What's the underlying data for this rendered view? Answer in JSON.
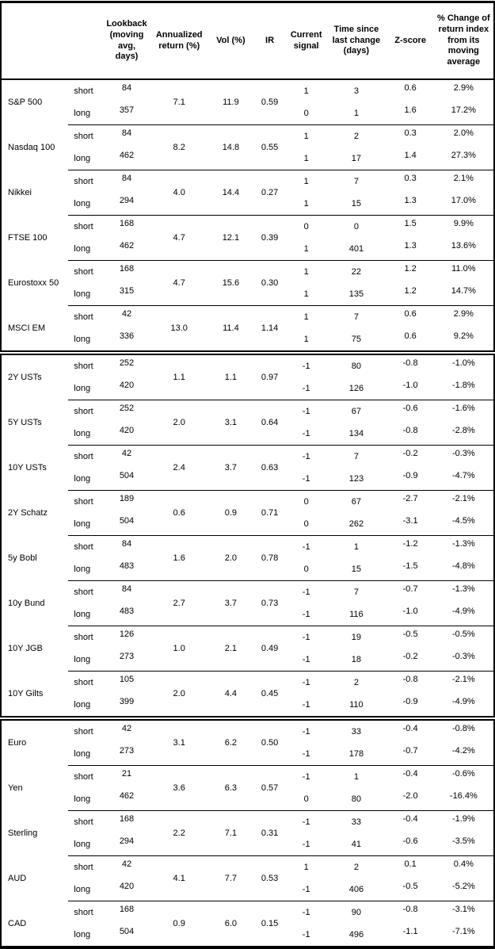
{
  "table": {
    "columns": {
      "asset": "",
      "leg": "",
      "lookback": "Lookback (moving avg, days)",
      "annualized": "Annualized return (%)",
      "vol": "Vol (%)",
      "ir": "IR",
      "signal": "Current signal",
      "time_since": "Time since last change (days)",
      "zscore": "Z-score",
      "pct_change": "% Change of return index from its moving average"
    },
    "groups": [
      {
        "name": "S&P 500",
        "section_start": false,
        "annualized": "7.1",
        "vol": "11.9",
        "ir": "0.59",
        "rows": [
          {
            "leg": "short",
            "lookback": "84",
            "signal": "1",
            "days": "3",
            "z": "0.6",
            "pct": "2.9%"
          },
          {
            "leg": "long",
            "lookback": "357",
            "signal": "0",
            "days": "1",
            "z": "1.6",
            "pct": "17.2%"
          }
        ]
      },
      {
        "name": "Nasdaq 100",
        "section_start": false,
        "annualized": "8.2",
        "vol": "14.8",
        "ir": "0.55",
        "rows": [
          {
            "leg": "short",
            "lookback": "84",
            "signal": "1",
            "days": "2",
            "z": "0.3",
            "pct": "2.0%"
          },
          {
            "leg": "long",
            "lookback": "462",
            "signal": "1",
            "days": "17",
            "z": "1.4",
            "pct": "27.3%"
          }
        ]
      },
      {
        "name": "Nikkei",
        "section_start": false,
        "annualized": "4.0",
        "vol": "14.4",
        "ir": "0.27",
        "rows": [
          {
            "leg": "short",
            "lookback": "84",
            "signal": "1",
            "days": "7",
            "z": "0.3",
            "pct": "2.1%"
          },
          {
            "leg": "long",
            "lookback": "294",
            "signal": "1",
            "days": "15",
            "z": "1.3",
            "pct": "17.0%"
          }
        ]
      },
      {
        "name": "FTSE 100",
        "section_start": false,
        "annualized": "4.7",
        "vol": "12.1",
        "ir": "0.39",
        "rows": [
          {
            "leg": "short",
            "lookback": "168",
            "signal": "0",
            "days": "0",
            "z": "1.5",
            "pct": "9.9%"
          },
          {
            "leg": "long",
            "lookback": "462",
            "signal": "1",
            "days": "401",
            "z": "1.3",
            "pct": "13.6%"
          }
        ]
      },
      {
        "name": "Eurostoxx 50",
        "section_start": false,
        "annualized": "4.7",
        "vol": "15.6",
        "ir": "0.30",
        "rows": [
          {
            "leg": "short",
            "lookback": "168",
            "signal": "1",
            "days": "22",
            "z": "1.2",
            "pct": "11.0%"
          },
          {
            "leg": "long",
            "lookback": "315",
            "signal": "1",
            "days": "135",
            "z": "1.2",
            "pct": "14.7%"
          }
        ]
      },
      {
        "name": "MSCI EM",
        "section_start": false,
        "annualized": "13.0",
        "vol": "11.4",
        "ir": "1.14",
        "rows": [
          {
            "leg": "short",
            "lookback": "42",
            "signal": "1",
            "days": "7",
            "z": "0.6",
            "pct": "2.9%"
          },
          {
            "leg": "long",
            "lookback": "336",
            "signal": "1",
            "days": "75",
            "z": "0.6",
            "pct": "9.2%"
          }
        ]
      },
      {
        "name": "2Y USTs",
        "section_start": true,
        "annualized": "1.1",
        "vol": "1.1",
        "ir": "0.97",
        "rows": [
          {
            "leg": "short",
            "lookback": "252",
            "signal": "-1",
            "days": "80",
            "z": "-0.8",
            "pct": "-1.0%"
          },
          {
            "leg": "long",
            "lookback": "420",
            "signal": "-1",
            "days": "126",
            "z": "-1.0",
            "pct": "-1.8%"
          }
        ]
      },
      {
        "name": "5Y USTs",
        "section_start": false,
        "annualized": "2.0",
        "vol": "3.1",
        "ir": "0.64",
        "rows": [
          {
            "leg": "short",
            "lookback": "252",
            "signal": "-1",
            "days": "67",
            "z": "-0.6",
            "pct": "-1.6%"
          },
          {
            "leg": "long",
            "lookback": "420",
            "signal": "-1",
            "days": "134",
            "z": "-0.8",
            "pct": "-2.8%"
          }
        ]
      },
      {
        "name": "10Y USTs",
        "section_start": false,
        "annualized": "2.4",
        "vol": "3.7",
        "ir": "0.63",
        "rows": [
          {
            "leg": "short",
            "lookback": "42",
            "signal": "-1",
            "days": "7",
            "z": "-0.2",
            "pct": "-0.3%"
          },
          {
            "leg": "long",
            "lookback": "504",
            "signal": "-1",
            "days": "123",
            "z": "-0.9",
            "pct": "-4.7%"
          }
        ]
      },
      {
        "name": "2Y Schatz",
        "section_start": false,
        "annualized": "0.6",
        "vol": "0.9",
        "ir": "0.71",
        "rows": [
          {
            "leg": "short",
            "lookback": "189",
            "signal": "0",
            "days": "67",
            "z": "-2.7",
            "pct": "-2.1%"
          },
          {
            "leg": "long",
            "lookback": "504",
            "signal": "0",
            "days": "262",
            "z": "-3.1",
            "pct": "-4.5%"
          }
        ]
      },
      {
        "name": "5y Bobl",
        "section_start": false,
        "annualized": "1.6",
        "vol": "2.0",
        "ir": "0.78",
        "rows": [
          {
            "leg": "short",
            "lookback": "84",
            "signal": "-1",
            "days": "1",
            "z": "-1.2",
            "pct": "-1.3%"
          },
          {
            "leg": "long",
            "lookback": "483",
            "signal": "0",
            "days": "15",
            "z": "-1.5",
            "pct": "-4.8%"
          }
        ]
      },
      {
        "name": "10y Bund",
        "section_start": false,
        "annualized": "2.7",
        "vol": "3.7",
        "ir": "0.73",
        "rows": [
          {
            "leg": "short",
            "lookback": "84",
            "signal": "-1",
            "days": "7",
            "z": "-0.7",
            "pct": "-1.3%"
          },
          {
            "leg": "long",
            "lookback": "483",
            "signal": "-1",
            "days": "116",
            "z": "-1.0",
            "pct": "-4.9%"
          }
        ]
      },
      {
        "name": "10Y JGB",
        "section_start": false,
        "annualized": "1.0",
        "vol": "2.1",
        "ir": "0.49",
        "rows": [
          {
            "leg": "short",
            "lookback": "126",
            "signal": "-1",
            "days": "19",
            "z": "-0.5",
            "pct": "-0.5%"
          },
          {
            "leg": "long",
            "lookback": "273",
            "signal": "-1",
            "days": "18",
            "z": "-0.2",
            "pct": "-0.3%"
          }
        ]
      },
      {
        "name": "10Y Gilts",
        "section_start": false,
        "annualized": "2.0",
        "vol": "4.4",
        "ir": "0.45",
        "rows": [
          {
            "leg": "short",
            "lookback": "105",
            "signal": "-1",
            "days": "2",
            "z": "-0.8",
            "pct": "-2.1%"
          },
          {
            "leg": "long",
            "lookback": "399",
            "signal": "-1",
            "days": "110",
            "z": "-0.9",
            "pct": "-4.9%"
          }
        ]
      },
      {
        "name": "Euro",
        "section_start": true,
        "annualized": "3.1",
        "vol": "6.2",
        "ir": "0.50",
        "rows": [
          {
            "leg": "short",
            "lookback": "42",
            "signal": "-1",
            "days": "33",
            "z": "-0.4",
            "pct": "-0.8%"
          },
          {
            "leg": "long",
            "lookback": "273",
            "signal": "-1",
            "days": "178",
            "z": "-0.7",
            "pct": "-4.2%"
          }
        ]
      },
      {
        "name": "Yen",
        "section_start": false,
        "annualized": "3.6",
        "vol": "6.3",
        "ir": "0.57",
        "rows": [
          {
            "leg": "short",
            "lookback": "21",
            "signal": "-1",
            "days": "1",
            "z": "-0.4",
            "pct": "-0.6%"
          },
          {
            "leg": "long",
            "lookback": "462",
            "signal": "0",
            "days": "80",
            "z": "-2.0",
            "pct": "-16.4%"
          }
        ]
      },
      {
        "name": "Sterling",
        "section_start": false,
        "annualized": "2.2",
        "vol": "7.1",
        "ir": "0.31",
        "rows": [
          {
            "leg": "short",
            "lookback": "168",
            "signal": "-1",
            "days": "33",
            "z": "-0.4",
            "pct": "-1.9%"
          },
          {
            "leg": "long",
            "lookback": "294",
            "signal": "-1",
            "days": "41",
            "z": "-0.6",
            "pct": "-3.5%"
          }
        ]
      },
      {
        "name": "AUD",
        "section_start": false,
        "annualized": "4.1",
        "vol": "7.7",
        "ir": "0.53",
        "rows": [
          {
            "leg": "short",
            "lookback": "42",
            "signal": "1",
            "days": "2",
            "z": "0.1",
            "pct": "0.4%"
          },
          {
            "leg": "long",
            "lookback": "420",
            "signal": "-1",
            "days": "406",
            "z": "-0.5",
            "pct": "-5.2%"
          }
        ]
      },
      {
        "name": "CAD",
        "section_start": false,
        "annualized": "0.9",
        "vol": "6.0",
        "ir": "0.15",
        "rows": [
          {
            "leg": "short",
            "lookback": "168",
            "signal": "-1",
            "days": "90",
            "z": "-0.8",
            "pct": "-3.1%"
          },
          {
            "leg": "long",
            "lookback": "504",
            "signal": "-1",
            "days": "496",
            "z": "-1.1",
            "pct": "-7.1%"
          }
        ]
      }
    ]
  }
}
